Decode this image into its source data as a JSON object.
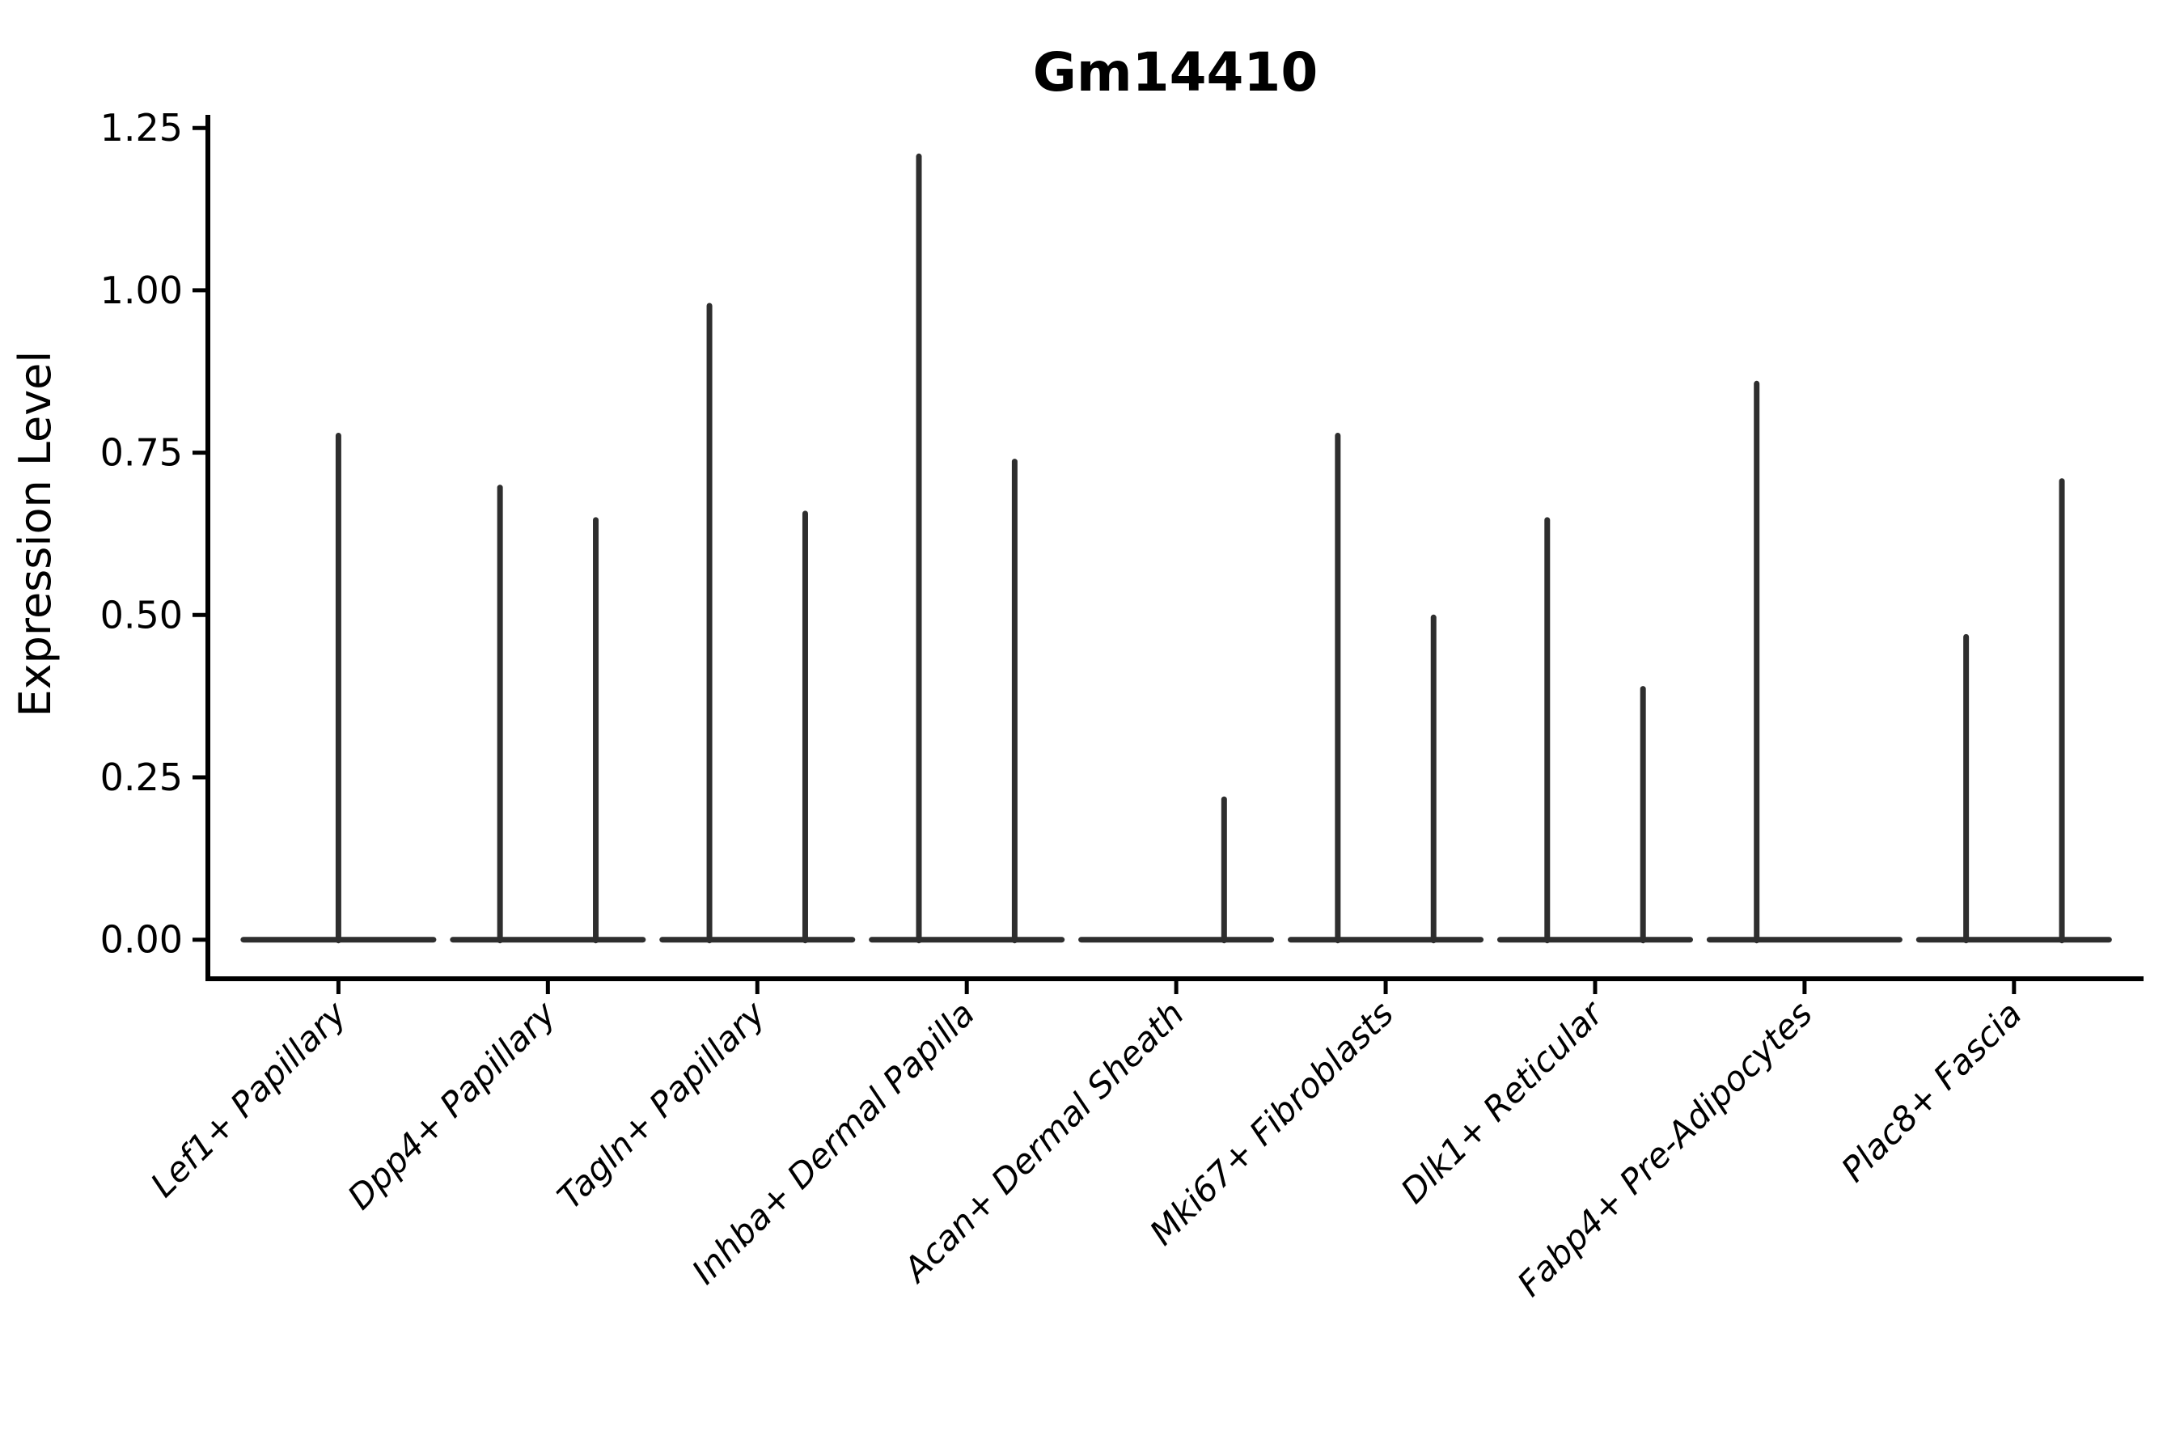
{
  "chart_data": {
    "type": "violin",
    "title": "Gm14410",
    "ylabel": "Expression Level",
    "xlabel": "",
    "ylim": [
      0,
      1.27
    ],
    "yticks": [
      0.0,
      0.25,
      0.5,
      0.75,
      1.0,
      1.25
    ],
    "ytick_labels": [
      "0.00",
      "0.25",
      "0.50",
      "0.75",
      "1.00",
      "1.25"
    ],
    "grid": false,
    "legend": "none",
    "x_tick_rotation_degrees": 45,
    "categories": [
      "Lef1+ Papillary",
      "Dpp4+ Papillary",
      "Tagln+ Papillary",
      "Inhba+ Dermal Papilla",
      "Acan+ Dermal Sheath",
      "Mki67+ Fibroblasts",
      "Dlk1+ Reticular",
      "Fabp4+ Pre-Adipocytes",
      "Plac8+ Fascia"
    ],
    "violins": [
      {
        "category": "Lef1+ Papillary",
        "spikes": [
          {
            "position": "center",
            "max": 0.78
          }
        ]
      },
      {
        "category": "Dpp4+ Papillary",
        "spikes": [
          {
            "position": "left",
            "max": 0.7
          },
          {
            "position": "right",
            "max": 0.65
          }
        ]
      },
      {
        "category": "Tagln+ Papillary",
        "spikes": [
          {
            "position": "left",
            "max": 0.98
          },
          {
            "position": "right",
            "max": 0.66
          }
        ]
      },
      {
        "category": "Inhba+ Dermal Papilla",
        "spikes": [
          {
            "position": "left",
            "max": 1.21
          },
          {
            "position": "right",
            "max": 0.74
          }
        ]
      },
      {
        "category": "Acan+ Dermal Sheath",
        "spikes": [
          {
            "position": "right",
            "max": 0.22
          }
        ]
      },
      {
        "category": "Mki67+ Fibroblasts",
        "spikes": [
          {
            "position": "left",
            "max": 0.78
          },
          {
            "position": "right",
            "max": 0.5
          }
        ]
      },
      {
        "category": "Dlk1+ Reticular",
        "spikes": [
          {
            "position": "left",
            "max": 0.65
          },
          {
            "position": "right",
            "max": 0.39
          }
        ]
      },
      {
        "category": "Fabp4+ Pre-Adipocytes",
        "spikes": [
          {
            "position": "left",
            "max": 0.86
          }
        ]
      },
      {
        "category": "Plac8+ Fascia",
        "spikes": [
          {
            "position": "left",
            "max": 0.47
          },
          {
            "position": "right",
            "max": 0.71
          }
        ]
      }
    ],
    "colors": {
      "violin_line": "#2e2e2e",
      "axis": "#000000",
      "text": "#000000",
      "background": "#ffffff"
    }
  }
}
